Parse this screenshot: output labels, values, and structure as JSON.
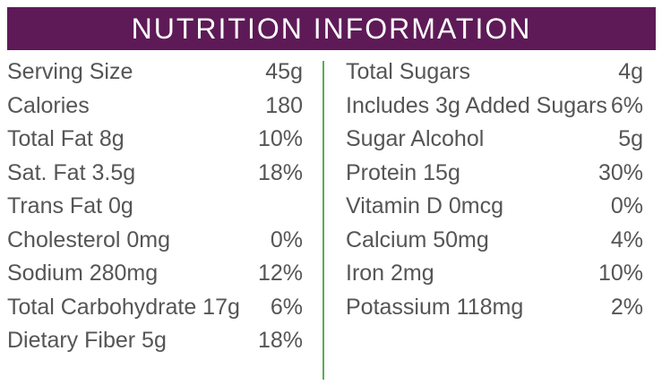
{
  "header": {
    "title": "NUTRITION INFORMATION"
  },
  "left_column": [
    {
      "label": "Serving Size",
      "value": "45g"
    },
    {
      "label": "Calories",
      "value": "180"
    },
    {
      "label": "Total Fat 8g",
      "value": "10%"
    },
    {
      "label": "Sat. Fat 3.5g",
      "value": "18%"
    },
    {
      "label": "Trans Fat 0g",
      "value": ""
    },
    {
      "label": "Cholesterol 0mg",
      "value": "0%"
    },
    {
      "label": "Sodium 280mg",
      "value": "12%"
    },
    {
      "label": "Total Carbohydrate 17g",
      "value": "6%"
    },
    {
      "label": "Dietary Fiber 5g",
      "value": "18%"
    }
  ],
  "right_column": [
    {
      "label": "Total Sugars",
      "value": "4g"
    },
    {
      "label": "Includes 3g Added Sugars",
      "value": "6%"
    },
    {
      "label": "Sugar Alcohol",
      "value": "5g"
    },
    {
      "label": "Protein 15g",
      "value": "30%"
    },
    {
      "label": "Vitamin D 0mcg",
      "value": "0%"
    },
    {
      "label": "Calcium 50mg",
      "value": "4%"
    },
    {
      "label": "Iron 2mg",
      "value": "10%"
    },
    {
      "label": "Potassium 118mg",
      "value": "2%"
    }
  ],
  "colors": {
    "header_background": "#5e1a57",
    "header_text": "#ffffff",
    "body_text": "#555555",
    "divider": "#5cab56"
  }
}
